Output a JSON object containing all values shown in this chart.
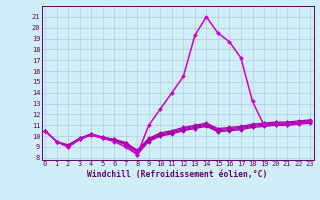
{
  "x": [
    0,
    1,
    2,
    3,
    4,
    5,
    6,
    7,
    8,
    9,
    10,
    11,
    12,
    13,
    14,
    15,
    16,
    17,
    18,
    19,
    20,
    21,
    22,
    23
  ],
  "lines": [
    {
      "y": [
        10.5,
        9.5,
        9.0,
        9.7,
        10.1,
        9.8,
        9.6,
        9.2,
        8.3,
        9.5,
        10.0,
        10.2,
        10.5,
        10.7,
        10.9,
        10.4,
        10.5,
        10.6,
        10.8,
        10.9,
        11.0,
        11.0,
        11.1,
        11.2
      ],
      "color": "#aa00aa",
      "lw": 0.9
    },
    {
      "y": [
        10.5,
        9.5,
        9.1,
        9.7,
        10.1,
        9.8,
        9.6,
        9.3,
        8.5,
        9.6,
        10.1,
        10.3,
        10.6,
        10.8,
        11.0,
        10.5,
        10.6,
        10.7,
        10.9,
        11.0,
        11.1,
        11.1,
        11.2,
        11.3
      ],
      "color": "#aa00aa",
      "lw": 0.9
    },
    {
      "y": [
        10.5,
        9.5,
        9.1,
        9.8,
        10.2,
        9.9,
        9.7,
        9.4,
        8.6,
        9.7,
        10.2,
        10.4,
        10.7,
        10.9,
        11.1,
        10.6,
        10.7,
        10.8,
        11.0,
        11.1,
        11.2,
        11.2,
        11.3,
        11.4
      ],
      "color": "#aa00aa",
      "lw": 0.9
    },
    {
      "y": [
        10.5,
        9.5,
        9.2,
        9.8,
        10.2,
        9.9,
        9.7,
        9.4,
        8.7,
        9.8,
        10.3,
        10.5,
        10.8,
        11.0,
        11.2,
        10.7,
        10.8,
        10.9,
        11.1,
        11.2,
        11.3,
        11.3,
        11.4,
        11.5
      ],
      "color": "#aa00aa",
      "lw": 0.9
    },
    {
      "y": [
        10.5,
        9.5,
        9.0,
        9.7,
        10.2,
        9.8,
        9.5,
        9.0,
        8.3,
        11.0,
        12.5,
        14.0,
        15.5,
        19.3,
        21.0,
        19.5,
        18.7,
        17.2,
        13.2,
        11.0,
        11.2,
        11.0,
        11.2,
        11.4
      ],
      "color": "#cc00cc",
      "lw": 1.1
    }
  ],
  "ylim": [
    7.8,
    22.0
  ],
  "xlim": [
    -0.3,
    23.3
  ],
  "yticks": [
    8,
    9,
    10,
    11,
    12,
    13,
    14,
    15,
    16,
    17,
    18,
    19,
    20,
    21
  ],
  "xticks": [
    0,
    1,
    2,
    3,
    4,
    5,
    6,
    7,
    8,
    9,
    10,
    11,
    12,
    13,
    14,
    15,
    16,
    17,
    18,
    19,
    20,
    21,
    22,
    23
  ],
  "xlabel": "Windchill (Refroidissement éolien,°C)",
  "bg_color": "#d0eef8",
  "grid_color": "#b0ccd8",
  "marker": "D",
  "marker_size": 2.0,
  "tick_color": "#660066",
  "xlabel_fontsize": 5.8,
  "tick_fontsize": 5.0
}
